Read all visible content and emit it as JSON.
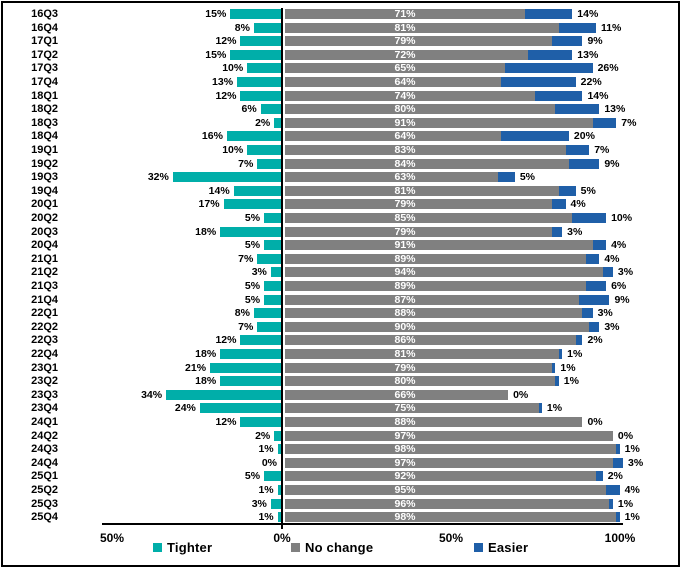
{
  "chart_data": {
    "type": "bar",
    "orientation": "horizontal-diverging-stacked",
    "title": "",
    "xlabel": "",
    "ylabel": "",
    "value_suffix": "%",
    "categories": [
      "16Q3",
      "16Q4",
      "17Q1",
      "17Q2",
      "17Q3",
      "17Q4",
      "18Q1",
      "18Q2",
      "18Q3",
      "18Q4",
      "19Q1",
      "19Q2",
      "19Q3",
      "19Q4",
      "20Q1",
      "20Q2",
      "20Q3",
      "20Q4",
      "21Q1",
      "21Q2",
      "21Q3",
      "21Q4",
      "22Q1",
      "22Q2",
      "22Q3",
      "22Q4",
      "23Q1",
      "23Q2",
      "23Q3",
      "23Q4",
      "24Q1",
      "24Q2",
      "24Q3",
      "24Q4",
      "25Q1",
      "25Q2",
      "25Q3",
      "25Q4"
    ],
    "series": [
      {
        "name": "Tighter",
        "color": "#00AEA9",
        "direction": "left",
        "values": [
          15,
          8,
          12,
          15,
          10,
          13,
          12,
          6,
          2,
          16,
          10,
          7,
          32,
          14,
          17,
          5,
          18,
          5,
          7,
          3,
          5,
          5,
          8,
          7,
          12,
          18,
          21,
          18,
          34,
          24,
          12,
          2,
          1,
          0,
          5,
          1,
          3,
          1
        ]
      },
      {
        "name": "No change",
        "color": "#808080",
        "direction": "right",
        "values": [
          71,
          81,
          79,
          72,
          65,
          64,
          74,
          80,
          91,
          64,
          83,
          84,
          63,
          81,
          79,
          85,
          79,
          91,
          89,
          94,
          89,
          87,
          88,
          90,
          86,
          81,
          79,
          80,
          66,
          75,
          88,
          97,
          98,
          97,
          92,
          95,
          96,
          98
        ]
      },
      {
        "name": "Easier",
        "color": "#1F5FA8",
        "direction": "right",
        "values": [
          14,
          11,
          9,
          13,
          26,
          22,
          14,
          13,
          7,
          20,
          7,
          9,
          5,
          5,
          4,
          10,
          3,
          4,
          4,
          3,
          6,
          9,
          3,
          3,
          2,
          1,
          1,
          1,
          0,
          1,
          0,
          0,
          1,
          3,
          2,
          4,
          1,
          1
        ]
      }
    ],
    "x_axis": {
      "ticks": [
        "50%",
        "0%",
        "50%",
        "100%"
      ],
      "tick_values": [
        -50,
        0,
        50,
        100
      ],
      "grid": false
    },
    "legend": [
      {
        "label": "Tighter",
        "color": "#00AEA9"
      },
      {
        "label": "No change",
        "color": "#808080"
      },
      {
        "label": "Easier",
        "color": "#1F5FA8"
      }
    ]
  }
}
